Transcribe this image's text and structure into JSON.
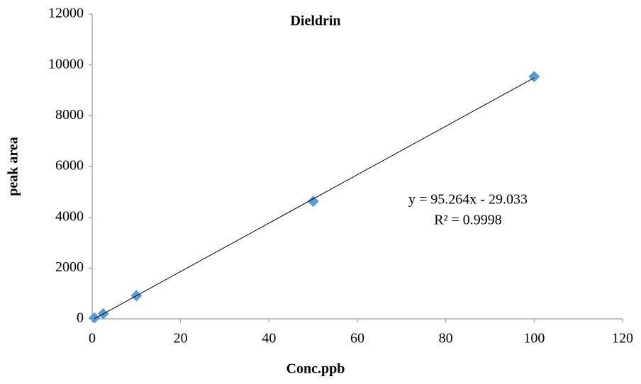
{
  "chart_data": {
    "type": "scatter",
    "title": "Dieldrin",
    "x_label": "Conc.ppb",
    "y_label": "peak area",
    "x": [
      0.5,
      2.5,
      10,
      50,
      100
    ],
    "values": [
      40,
      200,
      910,
      4630,
      9540
    ],
    "color": "#5b9bd5",
    "xlim": [
      0,
      120
    ],
    "xticks": [
      0,
      20,
      40,
      60,
      80,
      100,
      120
    ],
    "ylim": [
      0,
      12000
    ],
    "yticks": [
      0,
      2000,
      4000,
      6000,
      8000,
      10000,
      12000
    ],
    "grid": false,
    "trendline": {
      "equation": "y = 95.264x - 29.033",
      "r2": "R² = 0.9998"
    }
  }
}
